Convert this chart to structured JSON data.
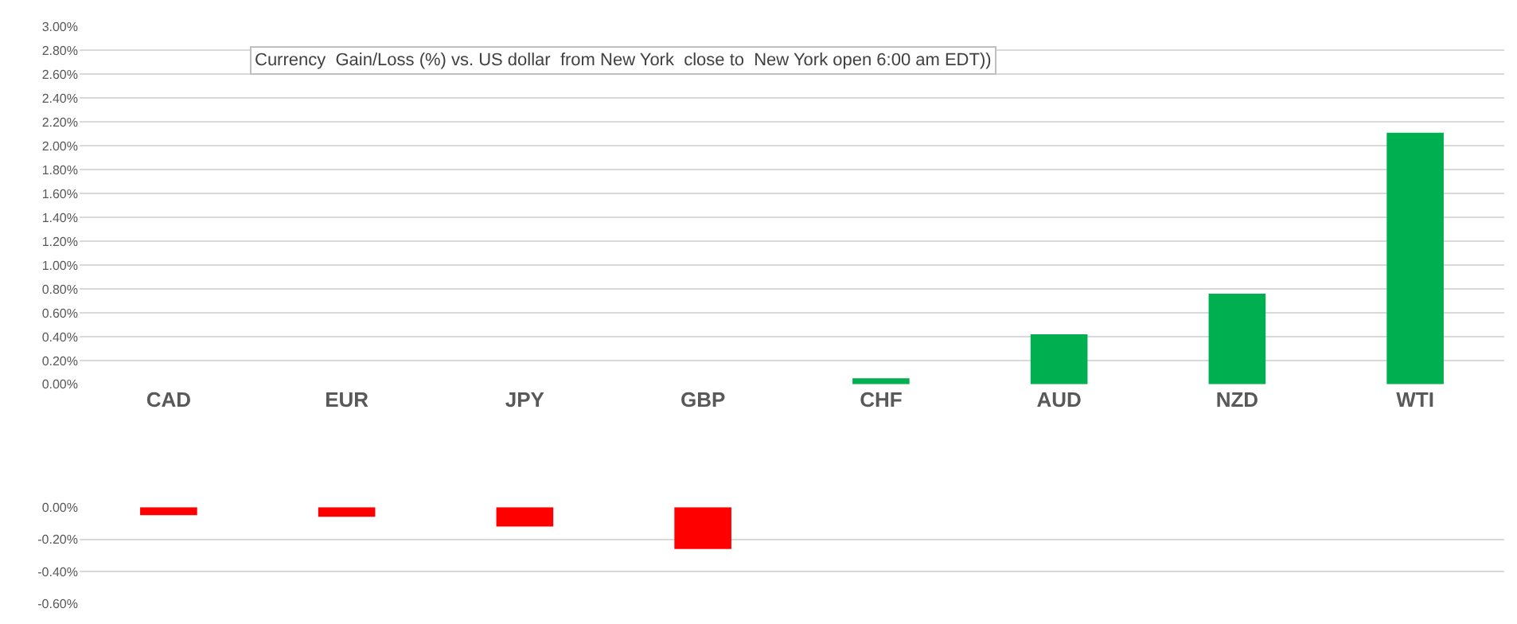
{
  "chart_data": [
    {
      "type": "bar",
      "title": "Currency  Gain/Loss (%) vs. US dollar  from New York  close to  New York open 6:00 am EDT))",
      "categories": [
        "CAD",
        "EUR",
        "JPY",
        "GBP",
        "CHF",
        "AUD",
        "NZD",
        "WTI"
      ],
      "values": [
        null,
        null,
        null,
        null,
        0.05,
        0.42,
        0.76,
        2.11
      ],
      "color": "#00b050",
      "ylim": [
        0,
        3
      ],
      "yticks": [
        {
          "value": 0,
          "label": "0.00%"
        },
        {
          "value": 0.2,
          "label": "0.20%"
        },
        {
          "value": 0.4,
          "label": "0.40%"
        },
        {
          "value": 0.6,
          "label": "0.60%"
        },
        {
          "value": 0.8,
          "label": "0.80%"
        },
        {
          "value": 1,
          "label": "1.00%"
        },
        {
          "value": 1.2,
          "label": "1.20%"
        },
        {
          "value": 1.4,
          "label": "1.40%"
        },
        {
          "value": 1.6,
          "label": "1.60%"
        },
        {
          "value": 1.8,
          "label": "1.80%"
        },
        {
          "value": 2,
          "label": "2.00%"
        },
        {
          "value": 2.2,
          "label": "2.20%"
        },
        {
          "value": 2.4,
          "label": "2.40%"
        },
        {
          "value": 2.6,
          "label": "2.60%"
        },
        {
          "value": 2.8,
          "label": "2.80%"
        },
        {
          "value": 3,
          "label": "3.00%"
        }
      ],
      "grid": "y"
    },
    {
      "type": "bar",
      "categories": [
        null,
        null,
        null,
        null,
        null,
        null,
        null,
        null
      ],
      "values": [
        -0.05,
        -0.06,
        -0.12,
        -0.26,
        null,
        null,
        null,
        null
      ],
      "color": "#ff0000",
      "ylim": [
        -0.6,
        0
      ],
      "yticks": [
        {
          "value": 0,
          "label": "0.00%"
        },
        {
          "value": -0.2,
          "label": "-0.20%"
        },
        {
          "value": -0.4,
          "label": "-0.40%"
        },
        {
          "value": -0.6,
          "label": "-0.60%"
        }
      ],
      "grid": "y",
      "tick_labels": "y"
    }
  ]
}
